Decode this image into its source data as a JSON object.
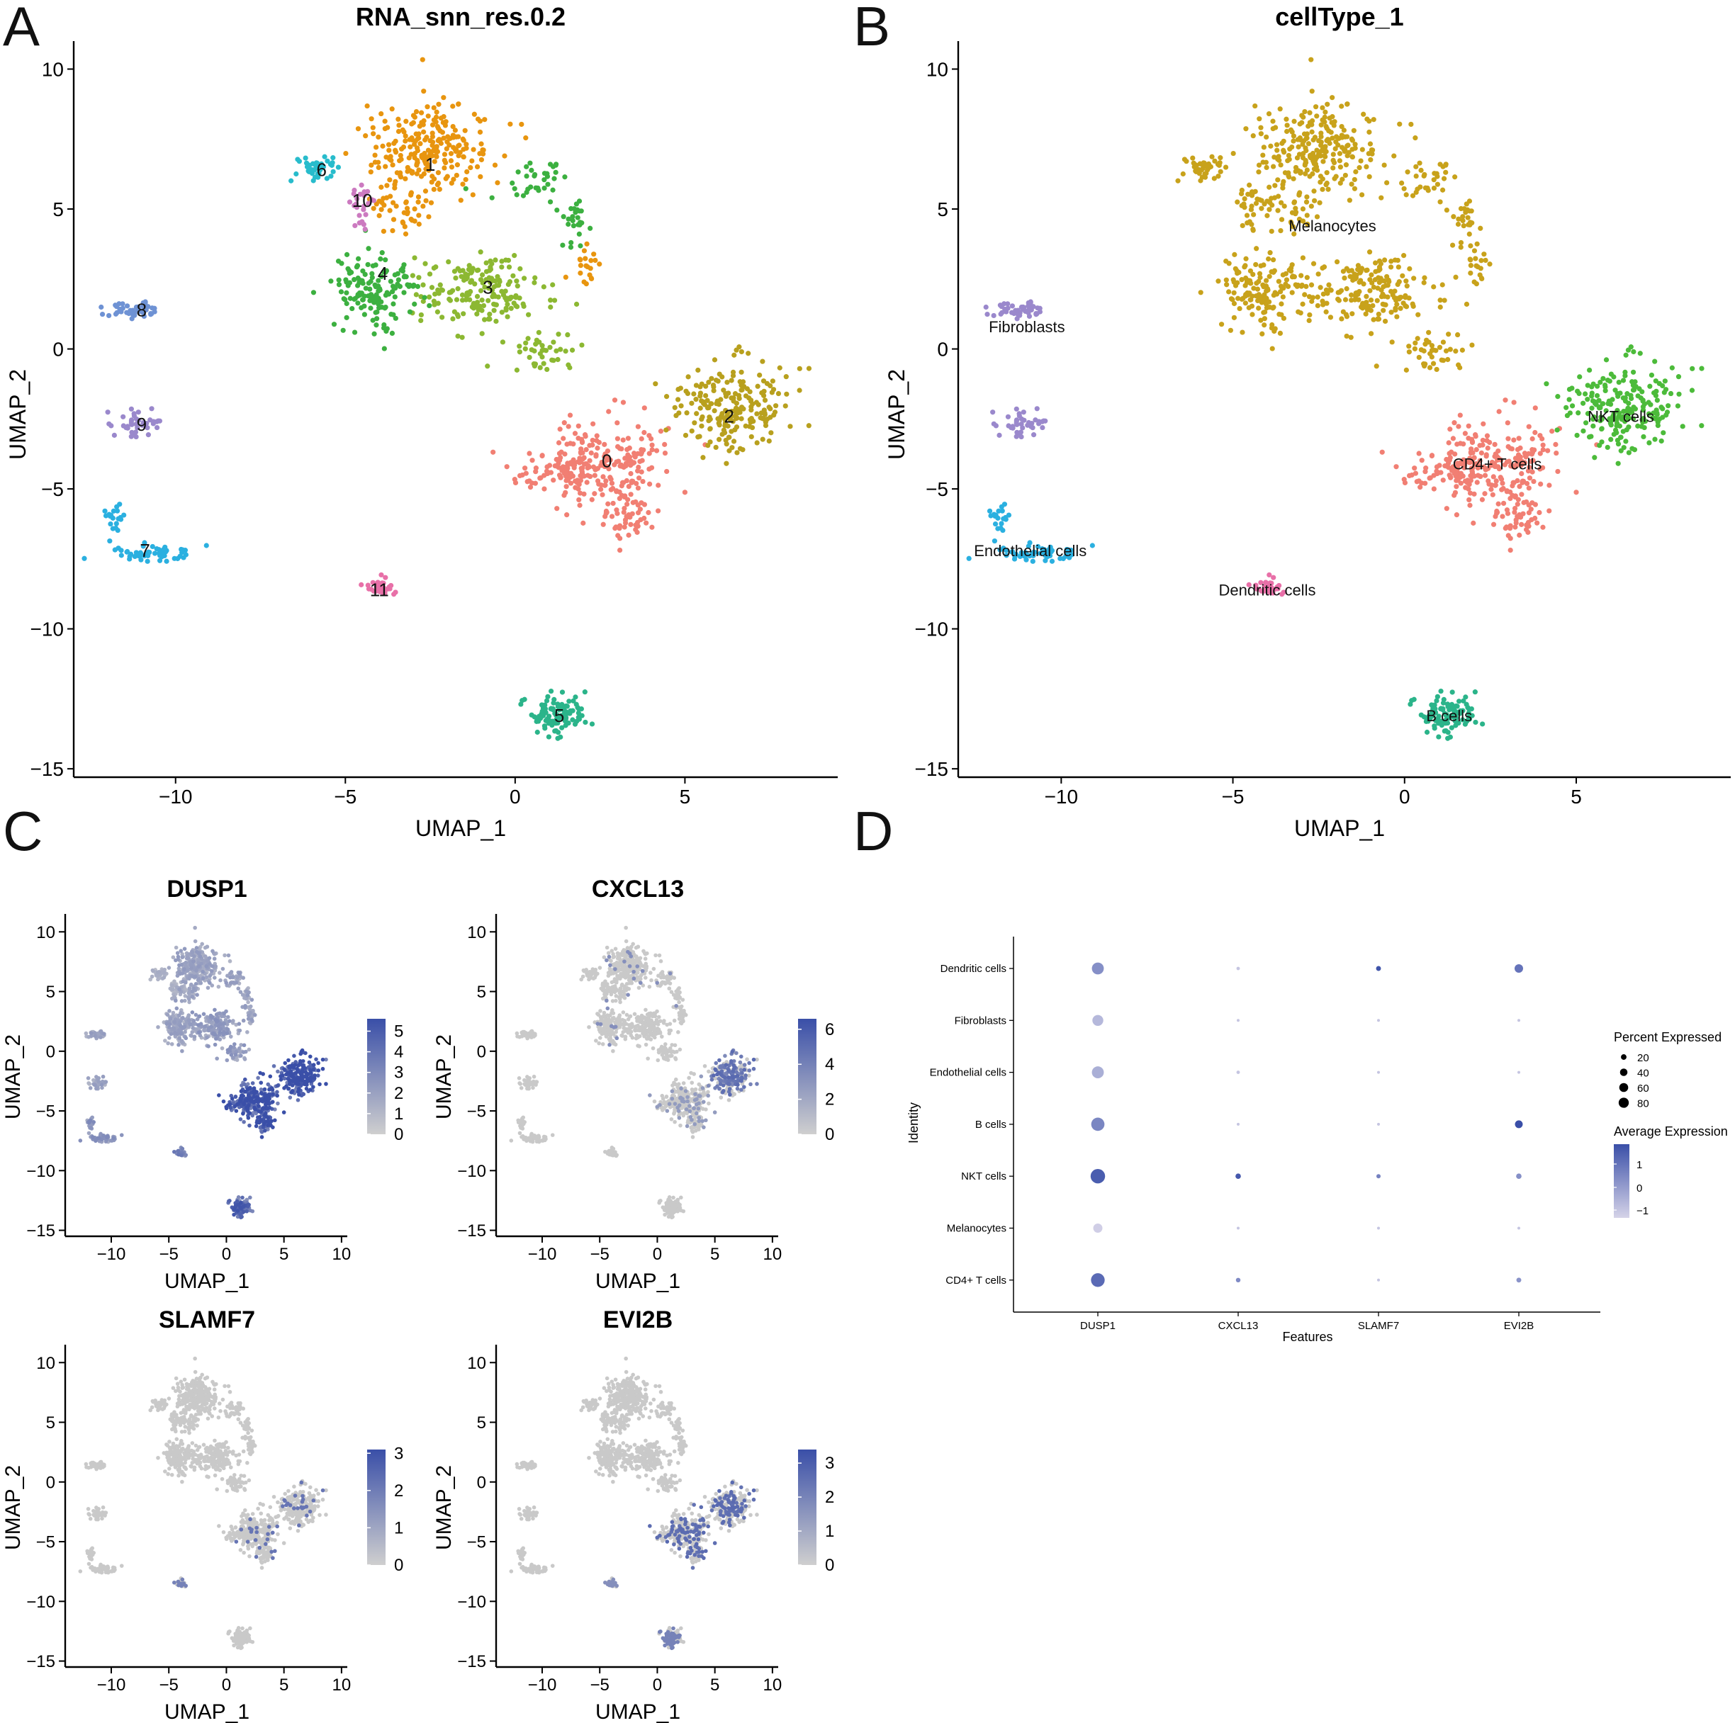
{
  "panel_letters": [
    "A",
    "B",
    "C",
    "D"
  ],
  "colors": {
    "cluster": [
      "#f17f73",
      "#e8950f",
      "#b8a01e",
      "#8cb832",
      "#3cb040",
      "#2bb48a",
      "#28bccc",
      "#2bb0e0",
      "#6e92d4",
      "#9a88cc",
      "#cc7ac0",
      "#e870a8"
    ],
    "gray": "#c9c9c9",
    "low": "#cfcfcf",
    "high": "#3a4fa8"
  },
  "chart_data": [
    {
      "id": "A",
      "type": "scatter",
      "title": "RNA_snn_res.0.2",
      "xlabel": "UMAP_1",
      "ylabel": "UMAP_2",
      "xlim": [
        -13,
        9.5
      ],
      "ylim": [
        -15.3,
        11
      ],
      "xticks": [
        -10,
        -5,
        0,
        5
      ],
      "yticks": [
        -15,
        -10,
        -5,
        0,
        5,
        10
      ],
      "cluster_labels": [
        {
          "text": "0",
          "x": 2.7,
          "y": -4.0
        },
        {
          "text": "1",
          "x": -2.5,
          "y": 6.6
        },
        {
          "text": "2",
          "x": 6.3,
          "y": -2.4
        },
        {
          "text": "3",
          "x": -0.8,
          "y": 2.2
        },
        {
          "text": "4",
          "x": -3.9,
          "y": 2.7
        },
        {
          "text": "5",
          "x": 1.3,
          "y": -13.1
        },
        {
          "text": "6",
          "x": -5.7,
          "y": 6.4
        },
        {
          "text": "7",
          "x": -10.9,
          "y": -7.2
        },
        {
          "text": "8",
          "x": -11.0,
          "y": 1.4
        },
        {
          "text": "9",
          "x": -11.0,
          "y": -2.7
        },
        {
          "text": "10",
          "x": -4.5,
          "y": 5.3
        },
        {
          "text": "11",
          "x": -4.0,
          "y": -8.6
        }
      ]
    },
    {
      "id": "B",
      "type": "scatter",
      "title": "cellType_1",
      "xlabel": "UMAP_1",
      "ylabel": "UMAP_2",
      "xlim": [
        -13,
        9.5
      ],
      "ylim": [
        -15.3,
        11
      ],
      "xticks": [
        -10,
        -5,
        0,
        5
      ],
      "yticks": [
        -15,
        -10,
        -5,
        0,
        5,
        10
      ],
      "cluster_labels": [
        {
          "text": "Melanocytes",
          "x": -2.1,
          "y": 4.4
        },
        {
          "text": "Fibroblasts",
          "x": -11.0,
          "y": 0.8
        },
        {
          "text": "NKT cells",
          "x": 6.3,
          "y": -2.4
        },
        {
          "text": "CD4+ T cells",
          "x": 2.7,
          "y": -4.1
        },
        {
          "text": "Endothelial cells",
          "x": -10.9,
          "y": -7.2
        },
        {
          "text": "Dendritic cells",
          "x": -4.0,
          "y": -8.6
        },
        {
          "text": "B cells",
          "x": 1.3,
          "y": -13.1
        }
      ]
    },
    {
      "id": "C1",
      "type": "scatter",
      "title": "DUSP1",
      "xlabel": "UMAP_1",
      "ylabel": "UMAP_2",
      "xlim": [
        -14,
        10.5
      ],
      "ylim": [
        -15.5,
        11.5
      ],
      "xticks": [
        -10,
        -5,
        0,
        5,
        10
      ],
      "yticks": [
        -15,
        -10,
        -5,
        0,
        5,
        10
      ],
      "colorbar_max": 5.6,
      "colorbar_ticks": [
        "0",
        "1",
        "2",
        "3",
        "4",
        "5"
      ]
    },
    {
      "id": "C2",
      "type": "scatter",
      "title": "CXCL13",
      "xlabel": "UMAP_1",
      "ylabel": "UMAP_2",
      "xlim": [
        -14,
        10.5
      ],
      "ylim": [
        -15.5,
        11.5
      ],
      "xticks": [
        -10,
        -5,
        0,
        5,
        10
      ],
      "yticks": [
        -15,
        -10,
        -5,
        0,
        5,
        10
      ],
      "colorbar_max": 6.6,
      "colorbar_ticks": [
        "0",
        "2",
        "4",
        "6"
      ]
    },
    {
      "id": "C3",
      "type": "scatter",
      "title": "SLAMF7",
      "xlabel": "UMAP_1",
      "ylabel": "UMAP_2",
      "xlim": [
        -14,
        10.5
      ],
      "ylim": [
        -15.5,
        11.5
      ],
      "xticks": [
        -10,
        -5,
        0,
        5,
        10
      ],
      "yticks": [
        -15,
        -10,
        -5,
        0,
        5,
        10
      ],
      "colorbar_max": 3.1,
      "colorbar_ticks": [
        "0",
        "1",
        "2",
        "3"
      ]
    },
    {
      "id": "C4",
      "type": "scatter",
      "title": "EVI2B",
      "xlabel": "UMAP_1",
      "ylabel": "UMAP_2",
      "xlim": [
        -14,
        10.5
      ],
      "ylim": [
        -15.5,
        11.5
      ],
      "xticks": [
        -10,
        -5,
        0,
        5,
        10
      ],
      "yticks": [
        -15,
        -10,
        -5,
        0,
        5,
        10
      ],
      "colorbar_max": 3.4,
      "colorbar_ticks": [
        "0",
        "1",
        "2",
        "3"
      ]
    },
    {
      "id": "D",
      "type": "dot",
      "xlabel": "Features",
      "ylabel": "Identity",
      "features": [
        "DUSP1",
        "CXCL13",
        "SLAMF7",
        "EVI2B"
      ],
      "identities": [
        "Dendritic cells",
        "Fibroblasts",
        "Endothelial cells",
        "B cells",
        "NKT cells",
        "Melanocytes",
        "CD4+ T cells"
      ],
      "percent_expressed": [
        [
          55,
          2,
          6,
          25
        ],
        [
          45,
          1,
          1,
          1
        ],
        [
          55,
          2,
          1,
          1
        ],
        [
          70,
          1,
          1,
          20
        ],
        [
          85,
          8,
          4,
          8
        ],
        [
          30,
          1,
          1,
          1
        ],
        [
          75,
          5,
          1,
          6
        ]
      ],
      "average_expression": [
        [
          0.2,
          -1,
          1.5,
          0.8
        ],
        [
          -0.7,
          -1,
          -1,
          -1
        ],
        [
          -0.5,
          -1,
          -1,
          -1
        ],
        [
          0.4,
          -1,
          -1,
          1.6
        ],
        [
          1.3,
          1.4,
          0.5,
          0.2
        ],
        [
          -1.2,
          -1,
          -1,
          -1
        ],
        [
          1.0,
          0.3,
          -1,
          0.1
        ]
      ],
      "size_legend": {
        "title": "Percent Expressed",
        "values": [
          20,
          40,
          60,
          80
        ]
      },
      "color_legend": {
        "title": "Average Expression",
        "ticks": [
          "1",
          "0",
          "−1"
        ]
      }
    }
  ]
}
